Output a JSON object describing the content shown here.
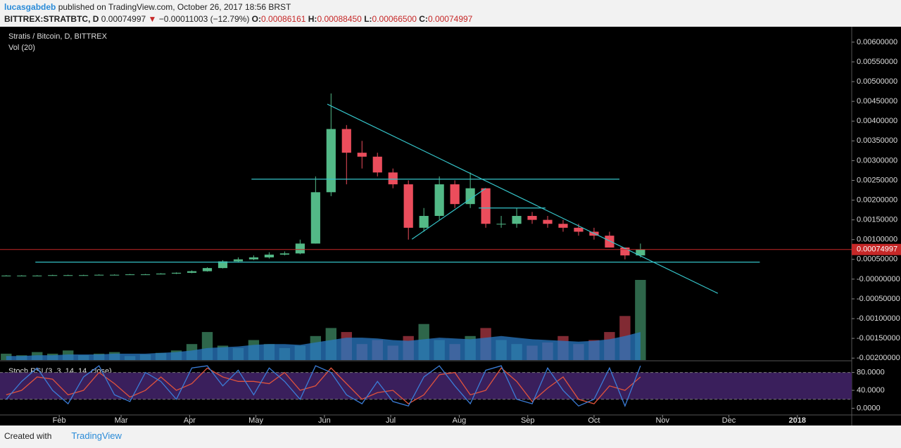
{
  "header": {
    "author": "lucasgabdeb",
    "published": "published on TradingView.com, October 26, 2017 18:56 BRST",
    "symbol": "BITTREX:STRATBTC, D",
    "last": "0.00074997",
    "arrow": "▼",
    "change": "−0.00011003 (−12.79%)",
    "o_label": "O:",
    "o": "0.00086161",
    "h_label": "H:",
    "h": "0.00088450",
    "l_label": "L:",
    "l": "0.00066500",
    "c_label": "C:",
    "c": "0.00074997"
  },
  "footer": {
    "created": "Created with",
    "brand": "TradingView"
  },
  "chart_data": {
    "type": "candlestick",
    "title": "Stratis / Bitcoin, D, BITTREX",
    "volume_title": "Vol (20)",
    "x": [
      7,
      14,
      21,
      28,
      35,
      42,
      49,
      56,
      63,
      70,
      77,
      84,
      91,
      98,
      105,
      112,
      119,
      126,
      133,
      140,
      147,
      154,
      161,
      168,
      175,
      182,
      189,
      196,
      203,
      210,
      217,
      224,
      231,
      238,
      245,
      252,
      259,
      266,
      273,
      280,
      287,
      294
    ],
    "open": [
      9e-05,
      9e-05,
      9e-05,
      9e-05,
      0.0001,
      0.0001,
      0.0001,
      0.00011,
      0.00011,
      0.00012,
      0.00012,
      0.00014,
      0.00016,
      0.0002,
      0.00028,
      0.00045,
      0.0005,
      0.00055,
      0.00062,
      0.00065,
      0.0009,
      0.0022,
      0.0038,
      0.0032,
      0.0031,
      0.0027,
      0.0024,
      0.0013,
      0.0016,
      0.0024,
      0.0019,
      0.0023,
      0.0014,
      0.0014,
      0.0016,
      0.0015,
      0.0014,
      0.0013,
      0.0012,
      0.0011,
      0.0008,
      0.0006
    ],
    "high": [
      0.0001,
      0.0001,
      0.0001,
      0.00011,
      0.00011,
      0.00011,
      0.00012,
      0.00012,
      0.00013,
      0.00013,
      0.00015,
      0.00017,
      0.00022,
      0.0003,
      0.00048,
      0.00055,
      0.0006,
      0.00068,
      0.0007,
      0.001,
      0.0026,
      0.0047,
      0.0039,
      0.0035,
      0.0032,
      0.0028,
      0.0025,
      0.0018,
      0.0026,
      0.0025,
      0.0027,
      0.0023,
      0.0016,
      0.0018,
      0.0017,
      0.0016,
      0.0015,
      0.0014,
      0.0013,
      0.0012,
      0.0008,
      0.0009
    ],
    "low": [
      8e-05,
      8e-05,
      8e-05,
      9e-05,
      9e-05,
      9e-05,
      0.0001,
      0.0001,
      0.00011,
      0.00011,
      0.00012,
      0.00013,
      0.00015,
      0.00019,
      0.00027,
      0.00042,
      0.00048,
      0.00052,
      0.0006,
      0.00063,
      0.0009,
      0.0021,
      0.0024,
      0.0028,
      0.0026,
      0.0023,
      0.001,
      0.0012,
      0.0015,
      0.0018,
      0.0018,
      0.0013,
      0.0013,
      0.0013,
      0.0014,
      0.0013,
      0.0012,
      0.0011,
      0.001,
      0.0008,
      0.0005,
      0.00055
    ],
    "close": [
      9e-05,
      9e-05,
      9e-05,
      0.0001,
      0.0001,
      0.0001,
      0.00011,
      0.00011,
      0.00012,
      0.00012,
      0.00014,
      0.00016,
      0.0002,
      0.00028,
      0.00045,
      0.0005,
      0.00055,
      0.00062,
      0.00065,
      0.0009,
      0.0022,
      0.0038,
      0.0032,
      0.0031,
      0.0027,
      0.0024,
      0.0013,
      0.0016,
      0.0024,
      0.0019,
      0.0023,
      0.0014,
      0.0014,
      0.0016,
      0.0015,
      0.0014,
      0.0013,
      0.0012,
      0.0011,
      0.0008,
      0.0006,
      0.00075
    ],
    "up_color": "#53b987",
    "down_color": "#eb4d5c",
    "xlim": [
      4.2,
      389.6
    ],
    "xticks": [
      {
        "value": 31,
        "label": "Feb"
      },
      {
        "value": 59,
        "label": "Mar"
      },
      {
        "value": 90,
        "label": "Apr"
      },
      {
        "value": 120,
        "label": "May"
      },
      {
        "value": 151,
        "label": "Jun"
      },
      {
        "value": 181,
        "label": "Jul"
      },
      {
        "value": 212,
        "label": "Aug"
      },
      {
        "value": 243,
        "label": "Sep"
      },
      {
        "value": 273,
        "label": "Oct"
      },
      {
        "value": 304,
        "label": "Nov"
      },
      {
        "value": 334,
        "label": "Dec"
      },
      {
        "value": 365,
        "label": "2018"
      }
    ],
    "ylim": [
      -0.00205,
      0.00639
    ],
    "yticks": [
      {
        "value": 0.006,
        "label": "0.00600000"
      },
      {
        "value": 0.0055,
        "label": "0.00550000"
      },
      {
        "value": 0.005,
        "label": "0.00500000"
      },
      {
        "value": 0.0045,
        "label": "0.00450000"
      },
      {
        "value": 0.004,
        "label": "0.00400000"
      },
      {
        "value": 0.0035,
        "label": "0.00350000"
      },
      {
        "value": 0.003,
        "label": "0.00300000"
      },
      {
        "value": 0.0025,
        "label": "0.00250000"
      },
      {
        "value": 0.002,
        "label": "0.00200000"
      },
      {
        "value": 0.0015,
        "label": "0.00150000"
      },
      {
        "value": 0.001,
        "label": "0.00100000"
      },
      {
        "value": 0.0005,
        "label": "0.00050000"
      },
      {
        "value": 0,
        "label": "-0.00000000"
      },
      {
        "value": -0.0005,
        "label": "-0.00050000"
      },
      {
        "value": -0.001,
        "label": "-0.00100000"
      },
      {
        "value": -0.0015,
        "label": "-0.00150000"
      },
      {
        "value": -0.002,
        "label": "-0.00200000"
      }
    ],
    "last_price": {
      "value": 0.00074997,
      "label": "0.00074997",
      "color": "#c62828"
    },
    "drawings": {
      "color": "#35c3c8",
      "lines": [
        {
          "x": [
            152.3,
            329
          ],
          "y": [
            0.00443,
            -0.00036
          ]
        },
        {
          "x": [
            118,
            284.5
          ],
          "y": [
            0.00253,
            0.00253
          ]
        },
        {
          "x": [
            20.2,
            348
          ],
          "y": [
            0.00043,
            0.00043
          ]
        },
        {
          "x": [
            190.6,
            224
          ],
          "y": [
            0.00101,
            0.0023
          ]
        },
        {
          "x": [
            220.8,
            251
          ],
          "y": [
            0.0018,
            0.0018
          ]
        }
      ]
    },
    "volume": {
      "values": [
        8,
        6,
        10,
        8,
        12,
        6,
        8,
        10,
        5,
        7,
        9,
        12,
        20,
        35,
        18,
        15,
        25,
        20,
        15,
        18,
        30,
        40,
        35,
        20,
        25,
        18,
        30,
        45,
        25,
        20,
        30,
        40,
        25,
        20,
        18,
        22,
        30,
        20,
        25,
        35,
        55,
        100
      ],
      "ma": [
        5,
        5,
        6,
        6,
        7,
        7,
        7,
        8,
        8,
        8,
        9,
        10,
        12,
        15,
        16,
        17,
        19,
        20,
        20,
        19,
        22,
        25,
        28,
        28,
        27,
        25,
        24,
        26,
        28,
        27,
        26,
        28,
        30,
        28,
        26,
        25,
        24,
        23,
        24,
        26,
        30,
        35
      ],
      "ylim": [
        0,
        100
      ],
      "ma_color": "#2a79c4"
    },
    "stoch_rsi": {
      "title": "Stoch RSI (3, 3, 14, 14, close)",
      "k": [
        20,
        60,
        90,
        40,
        10,
        70,
        95,
        30,
        15,
        80,
        60,
        20,
        90,
        95,
        50,
        85,
        30,
        90,
        60,
        20,
        95,
        80,
        30,
        10,
        60,
        15,
        5,
        70,
        95,
        50,
        10,
        85,
        95,
        20,
        10,
        90,
        40,
        5,
        20,
        90,
        5,
        95
      ],
      "d": [
        30,
        40,
        70,
        65,
        30,
        40,
        80,
        55,
        25,
        40,
        70,
        40,
        55,
        90,
        70,
        60,
        60,
        55,
        80,
        40,
        50,
        90,
        55,
        20,
        35,
        40,
        10,
        30,
        75,
        80,
        30,
        40,
        90,
        60,
        15,
        45,
        70,
        20,
        10,
        50,
        40,
        70
      ],
      "k_color": "#3b7dd8",
      "d_color": "#e0533c",
      "bands": [
        20,
        80
      ],
      "band_color": "#3a1f5c",
      "ylim": [
        -15,
        103
      ],
      "yticks": [
        {
          "value": 80,
          "label": "80.0000"
        },
        {
          "value": 40,
          "label": "40.0000"
        },
        {
          "value": 0,
          "label": "0.0000"
        }
      ]
    }
  }
}
